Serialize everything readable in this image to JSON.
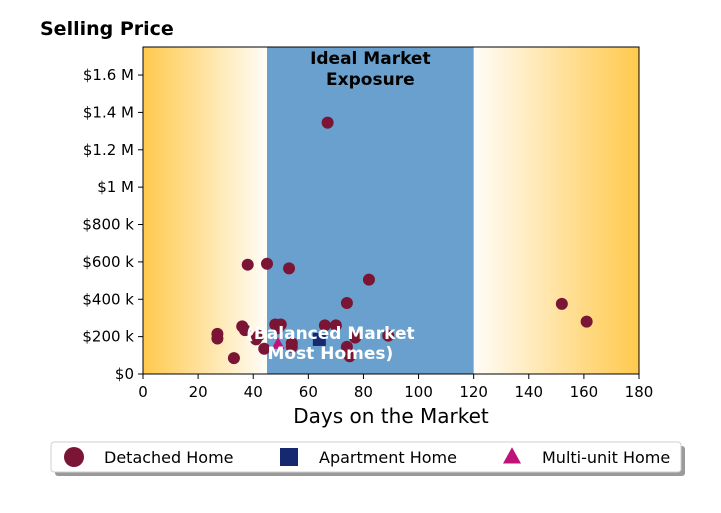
{
  "chart_data": {
    "type": "scatter",
    "title": "Selling Price",
    "xlabel": "Days on the Market",
    "ylabel": "",
    "xlim": [
      0,
      180
    ],
    "ylim": [
      0,
      1750000
    ],
    "x_ticks": [
      0,
      20,
      40,
      60,
      80,
      100,
      120,
      140,
      160,
      180
    ],
    "x_tick_labels": [
      "0",
      "20",
      "40",
      "60",
      "80",
      "100",
      "120",
      "140",
      "160",
      "180"
    ],
    "y_ticks": [
      0,
      200000,
      400000,
      600000,
      800000,
      1000000,
      1200000,
      1400000,
      1600000
    ],
    "y_tick_labels": [
      "$0",
      "$200 k",
      "$400 k",
      "$600 k",
      "$800 k",
      "$1 M",
      "$1.2 M",
      "$1.4 M",
      "$1.6 M"
    ],
    "grid": false,
    "legend_position": "bottom-center",
    "regions": [
      {
        "label": "Ideal Market Exposure",
        "x_range": [
          45,
          120
        ],
        "color": "#6aa0cd"
      },
      {
        "label": "(Balanced Market Most Homes)",
        "x_range": [
          45,
          120
        ]
      }
    ],
    "gradients": [
      {
        "x_range": [
          0,
          45
        ],
        "color": "#ffc94d",
        "fade": "to-right"
      },
      {
        "x_range": [
          120,
          180
        ],
        "color": "#ffc94d",
        "fade": "to-left"
      }
    ],
    "series": [
      {
        "name": "Detached Home",
        "marker": "circle",
        "color": "#7b1535",
        "points": [
          {
            "x": 27,
            "y": 215000
          },
          {
            "x": 27,
            "y": 190000
          },
          {
            "x": 33,
            "y": 85000
          },
          {
            "x": 36,
            "y": 255000
          },
          {
            "x": 37,
            "y": 235000
          },
          {
            "x": 38,
            "y": 585000
          },
          {
            "x": 41,
            "y": 185000
          },
          {
            "x": 42,
            "y": 205000
          },
          {
            "x": 44,
            "y": 135000
          },
          {
            "x": 45,
            "y": 590000
          },
          {
            "x": 48,
            "y": 265000
          },
          {
            "x": 49,
            "y": 245000
          },
          {
            "x": 50,
            "y": 265000
          },
          {
            "x": 53,
            "y": 565000
          },
          {
            "x": 54,
            "y": 165000
          },
          {
            "x": 54,
            "y": 145000
          },
          {
            "x": 66,
            "y": 260000
          },
          {
            "x": 67,
            "y": 1345000
          },
          {
            "x": 70,
            "y": 260000
          },
          {
            "x": 74,
            "y": 380000
          },
          {
            "x": 74,
            "y": 145000
          },
          {
            "x": 75,
            "y": 95000
          },
          {
            "x": 77,
            "y": 195000
          },
          {
            "x": 82,
            "y": 505000
          },
          {
            "x": 89,
            "y": 205000
          },
          {
            "x": 152,
            "y": 375000
          },
          {
            "x": 161,
            "y": 280000
          }
        ]
      },
      {
        "name": "Apartment Home",
        "marker": "square",
        "color": "#152870",
        "points": [
          {
            "x": 64,
            "y": 185000
          }
        ]
      },
      {
        "name": "Multi-unit Home",
        "marker": "triangle",
        "color": "#c0137a",
        "points": [
          {
            "x": 49,
            "y": 160000
          }
        ]
      }
    ]
  }
}
